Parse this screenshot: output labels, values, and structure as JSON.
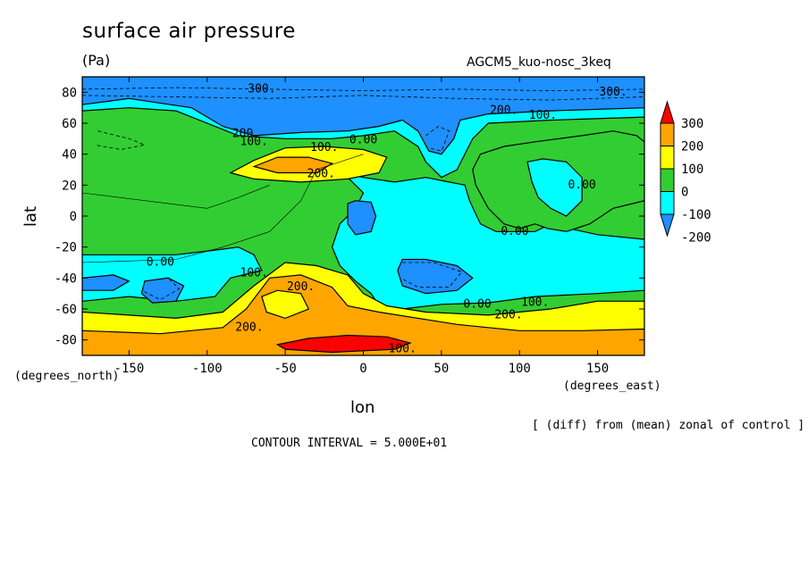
{
  "title": "surface air pressure",
  "units": "(Pa)",
  "run_label": "AGCM5_kuo-nosc_3keq",
  "footnote": "[ (diff) from (mean) zonal of control ]",
  "contour_interval": "CONTOUR INTERVAL = 5.000E+01",
  "chart_data": {
    "type": "heatmap",
    "title": "surface air pressure",
    "units": "(Pa)",
    "xlabel": "lon",
    "ylabel": "lat",
    "x_unit_label": "(degrees_east)",
    "y_unit_label": "(degrees_north)",
    "xlim": [
      -180,
      180
    ],
    "ylim": [
      -90,
      90
    ],
    "x_ticks": [
      -150,
      -100,
      -50,
      0,
      50,
      100,
      150
    ],
    "y_ticks": [
      -80,
      -60,
      -40,
      -20,
      0,
      20,
      40,
      60,
      80
    ],
    "x_tick_labels": [
      "-150",
      "-100",
      "-50",
      "0",
      "50",
      "100",
      "150"
    ],
    "y_tick_labels": [
      "-80",
      "-60",
      "-40",
      "-20",
      "0",
      "20",
      "40",
      "60",
      "80"
    ],
    "colorbar": {
      "levels": [
        -200,
        -100,
        0,
        100,
        200,
        300
      ],
      "labels": [
        "-200",
        "-100",
        "0",
        "100",
        "200",
        "300"
      ],
      "colors": [
        "#1e90ff",
        "#00ffff",
        "#32cd32",
        "#ffff00",
        "#ffa500",
        "#ff0000"
      ],
      "extend_low_color": "#1e90ff",
      "extend_high_color": "#ff0000"
    },
    "contour_labels": [
      {
        "text": "300.",
        "lon": -65,
        "lat": 82
      },
      {
        "text": "300.",
        "lon": 160,
        "lat": 80
      },
      {
        "text": "200.",
        "lon": 90,
        "lat": 68
      },
      {
        "text": "100.",
        "lon": 115,
        "lat": 65
      },
      {
        "text": "200.",
        "lon": -75,
        "lat": 53
      },
      {
        "text": "100.",
        "lon": -70,
        "lat": 48
      },
      {
        "text": "100.",
        "lon": -25,
        "lat": 44
      },
      {
        "text": "0.00",
        "lon": 0,
        "lat": 49
      },
      {
        "text": "200.",
        "lon": -27,
        "lat": 27
      },
      {
        "text": "0.00",
        "lon": 140,
        "lat": 20
      },
      {
        "text": "0.00",
        "lon": 97,
        "lat": -10
      },
      {
        "text": "0.00",
        "lon": -130,
        "lat": -30
      },
      {
        "text": "100.",
        "lon": -70,
        "lat": -37
      },
      {
        "text": "200.",
        "lon": -40,
        "lat": -46
      },
      {
        "text": "0.00",
        "lon": 73,
        "lat": -57
      },
      {
        "text": "100.",
        "lon": 110,
        "lat": -56
      },
      {
        "text": "200.",
        "lon": 93,
        "lat": -64
      },
      {
        "text": "200.",
        "lon": -73,
        "lat": -72
      },
      {
        "text": "100.",
        "lon": 25,
        "lat": -86
      }
    ]
  }
}
